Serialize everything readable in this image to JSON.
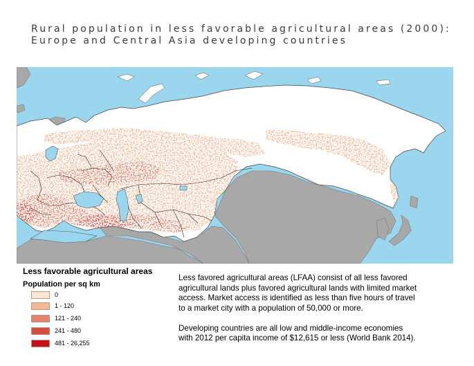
{
  "title": {
    "line1": "Rural population in less favorable agricultural areas (2000):",
    "line2": "Europe and Central Asia developing countries"
  },
  "legend": {
    "title": "Less favorable agricultural areas",
    "subtitle": "Population per sq km",
    "items": [
      {
        "label": "0",
        "color": "#fde7d4"
      },
      {
        "label": "1 - 120",
        "color": "#f3b896"
      },
      {
        "label": "121 - 240",
        "color": "#e5826a"
      },
      {
        "label": "241 - 480",
        "color": "#d84a3e"
      },
      {
        "label": "481 - 26,255",
        "color": "#c8101a"
      }
    ]
  },
  "notes": {
    "p1": [
      "Less favored agricultural areas (LFAA) consist of all less favored",
      "agricultural lands plus favored agricultural lands with limited market",
      "access. Market access is identified as less than five hours of travel",
      "to a market city with a population of 50,000 or more."
    ],
    "p2": [
      "Developing countries are all low and middle-income economies",
      "with 2012 per capita income of $12,615 or less (World Bank 2014)."
    ]
  },
  "map_colors": {
    "water": "#9ad7ee",
    "other_land": "#a8a8a8",
    "non_lfaa_land": "#ffffff",
    "lfaa_low": "#f3b896",
    "lfaa_mid": "#e5826a",
    "borders": "#222222"
  }
}
